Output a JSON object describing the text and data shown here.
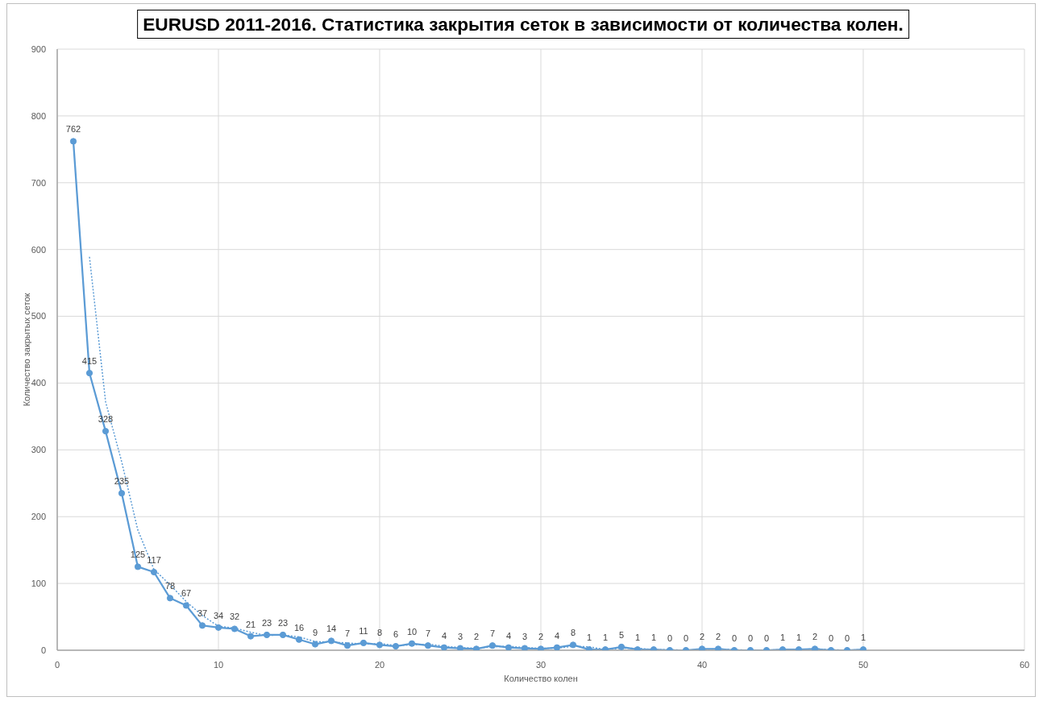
{
  "chart_data": {
    "type": "line",
    "title": "EURUSD 2011-2016. Статистика закрытия сеток в зависимости от количества колен.",
    "xlabel": "Количество колен",
    "ylabel": "Количество закрытых сеток",
    "x": [
      1,
      2,
      3,
      4,
      5,
      6,
      7,
      8,
      9,
      10,
      11,
      12,
      13,
      14,
      15,
      16,
      17,
      18,
      19,
      20,
      21,
      22,
      23,
      24,
      25,
      26,
      27,
      28,
      29,
      30,
      31,
      32,
      33,
      34,
      35,
      36,
      37,
      38,
      39,
      40,
      41,
      42,
      43,
      44,
      45,
      46,
      47,
      48,
      49,
      50
    ],
    "series": [
      {
        "color": "#5b9bd5",
        "values": [
          762,
          415,
          328,
          235,
          125,
          117,
          78,
          67,
          37,
          34,
          32,
          21,
          23,
          23,
          16,
          9,
          14,
          7,
          11,
          8,
          6,
          10,
          7,
          4,
          3,
          2,
          7,
          4,
          3,
          2,
          4,
          8,
          1,
          1,
          5,
          1,
          1,
          0,
          0,
          2,
          2,
          0,
          0,
          0,
          1,
          1,
          2,
          0,
          0,
          1
        ],
        "value_labels": [
          "762",
          "415",
          "328",
          "235",
          "125",
          "117",
          "78",
          "67",
          "37",
          "34",
          "32",
          "21",
          "23",
          "23",
          "16",
          "9",
          "14",
          "7",
          "11",
          "8",
          "6",
          "10",
          "7",
          "4",
          "3",
          "2",
          "7",
          "4",
          "3",
          "2",
          "4",
          "8",
          "1",
          "1",
          "5",
          "1",
          "1",
          "0",
          "0",
          "2",
          "2",
          "0",
          "0",
          "0",
          "1",
          "1",
          "2",
          "0",
          "0",
          "1"
        ]
      },
      {
        "type": "line",
        "color": "#5b9bd5",
        "marker": "none",
        "line_style": "dotted",
        "x": [
          2,
          3,
          4,
          5,
          6,
          7,
          8,
          9,
          10,
          11,
          12,
          13,
          14,
          15,
          16,
          17,
          18,
          19,
          20,
          21,
          22,
          23,
          24,
          25,
          26,
          27,
          28,
          29,
          30,
          31,
          32,
          33,
          34,
          35,
          36,
          37,
          38,
          39,
          40,
          41,
          42,
          43,
          44,
          45,
          46,
          47,
          48,
          49,
          50
        ],
        "values": [
          589,
          372,
          282,
          180,
          121,
          98,
          73,
          52,
          36,
          33,
          27,
          22,
          23,
          20,
          13,
          12,
          11,
          9,
          10,
          7,
          8,
          9,
          6,
          4,
          3,
          5,
          6,
          4,
          3,
          3,
          6,
          5,
          1,
          3,
          3,
          1,
          1,
          0,
          1,
          2,
          1,
          0,
          0,
          1,
          1,
          2,
          1,
          0,
          1
        ]
      }
    ],
    "xlim": [
      0,
      60
    ],
    "xticks": [
      0,
      10,
      20,
      30,
      40,
      50,
      60
    ],
    "ylim": [
      0,
      900
    ],
    "yticks": [
      0,
      100,
      200,
      300,
      400,
      500,
      600,
      700,
      800,
      900
    ],
    "grid": true,
    "marker": "circle",
    "line_style": "solid"
  }
}
